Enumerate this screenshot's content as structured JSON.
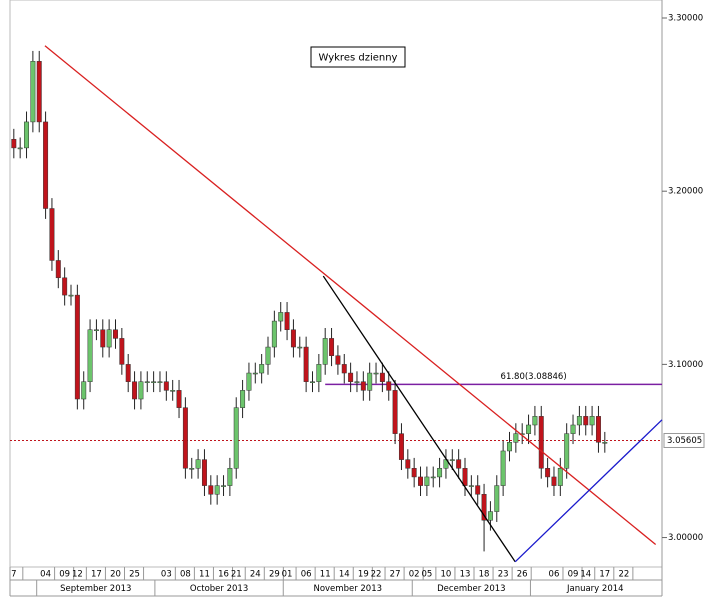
{
  "chart_data": {
    "type": "candlestick",
    "title": "Wykres dzienny",
    "up_color": "#6cc46c",
    "down_color": "#c0141c",
    "ylim": [
      2.983,
      3.3104
    ],
    "yticks": [
      {
        "value": 3.3,
        "label": "3.30000"
      },
      {
        "value": 3.2,
        "label": "3.20000"
      },
      {
        "value": 3.1,
        "label": "3.10000"
      },
      {
        "value": 3.0,
        "label": "3.00000"
      }
    ],
    "xlim": [
      -0.6,
      102
    ],
    "xticks": [
      {
        "value": 0,
        "label": "7"
      },
      {
        "value": 5,
        "label": "04"
      },
      {
        "value": 8,
        "label": "09"
      },
      {
        "value": 10,
        "label": "12"
      },
      {
        "value": 13,
        "label": "17"
      },
      {
        "value": 16,
        "label": "20"
      },
      {
        "value": 19,
        "label": "25"
      },
      {
        "value": 24,
        "label": "03"
      },
      {
        "value": 27,
        "label": "08"
      },
      {
        "value": 30,
        "label": "11"
      },
      {
        "value": 33,
        "label": "16"
      },
      {
        "value": 35,
        "label": "21"
      },
      {
        "value": 38,
        "label": "24"
      },
      {
        "value": 41,
        "label": "29"
      },
      {
        "value": 43,
        "label": "01"
      },
      {
        "value": 46,
        "label": "06"
      },
      {
        "value": 49,
        "label": "11"
      },
      {
        "value": 52,
        "label": "14"
      },
      {
        "value": 55,
        "label": "19"
      },
      {
        "value": 57,
        "label": "22"
      },
      {
        "value": 60,
        "label": "27"
      },
      {
        "value": 63,
        "label": "02"
      },
      {
        "value": 65,
        "label": "05"
      },
      {
        "value": 68,
        "label": "10"
      },
      {
        "value": 71,
        "label": "13"
      },
      {
        "value": 74,
        "label": "18"
      },
      {
        "value": 77,
        "label": "23"
      },
      {
        "value": 80,
        "label": "26"
      },
      {
        "value": 85,
        "label": "06"
      },
      {
        "value": 88,
        "label": "09"
      },
      {
        "value": 90,
        "label": "14"
      },
      {
        "value": 93,
        "label": "17"
      },
      {
        "value": 96,
        "label": "22"
      }
    ],
    "months": [
      {
        "label": "September 2013",
        "from": 3.6,
        "to": 22.2
      },
      {
        "label": "October 2013",
        "from": 22.2,
        "to": 42.4
      },
      {
        "label": "November 2013",
        "from": 42.4,
        "to": 62.7
      },
      {
        "label": "December 2013",
        "from": 62.7,
        "to": 81.3
      },
      {
        "label": "January 2014",
        "from": 81.3,
        "to": 101.7
      }
    ],
    "open": [
      3.23,
      3.225,
      3.225,
      3.24,
      3.275,
      3.24,
      3.19,
      3.16,
      3.15,
      3.14,
      3.14,
      3.08,
      3.09,
      3.12,
      3.12,
      3.11,
      3.12,
      3.115,
      3.1,
      3.09,
      3.08,
      3.09,
      3.09,
      3.09,
      3.09,
      3.085,
      3.085,
      3.075,
      3.04,
      3.04,
      3.045,
      3.03,
      3.025,
      3.03,
      3.03,
      3.04,
      3.075,
      3.085,
      3.095,
      3.095,
      3.1,
      3.11,
      3.125,
      3.13,
      3.12,
      3.11,
      3.11,
      3.09,
      3.09,
      3.1,
      3.115,
      3.105,
      3.1,
      3.095,
      3.09,
      3.09,
      3.085,
      3.095,
      3.095,
      3.09,
      3.085,
      3.06,
      3.045,
      3.04,
      3.035,
      3.03,
      3.035,
      3.035,
      3.04,
      3.045,
      3.045,
      3.04,
      3.03,
      3.03,
      3.025,
      3.01,
      3.015,
      3.03,
      3.05,
      3.055,
      3.06,
      3.06,
      3.065,
      3.07,
      3.04,
      3.035,
      3.03,
      3.04,
      3.06,
      3.065,
      3.07,
      3.065,
      3.07,
      3.055
    ],
    "high": [
      3.236,
      3.231,
      3.246,
      3.281,
      3.281,
      3.246,
      3.196,
      3.166,
      3.156,
      3.146,
      3.146,
      3.096,
      3.126,
      3.126,
      3.126,
      3.126,
      3.126,
      3.121,
      3.106,
      3.096,
      3.096,
      3.096,
      3.096,
      3.096,
      3.096,
      3.091,
      3.091,
      3.081,
      3.046,
      3.051,
      3.051,
      3.036,
      3.036,
      3.036,
      3.046,
      3.081,
      3.091,
      3.101,
      3.101,
      3.106,
      3.116,
      3.131,
      3.136,
      3.136,
      3.126,
      3.116,
      3.116,
      3.096,
      3.106,
      3.121,
      3.121,
      3.111,
      3.106,
      3.101,
      3.096,
      3.096,
      3.101,
      3.101,
      3.101,
      3.096,
      3.091,
      3.066,
      3.051,
      3.046,
      3.041,
      3.041,
      3.041,
      3.046,
      3.051,
      3.051,
      3.051,
      3.046,
      3.036,
      3.036,
      3.031,
      3.021,
      3.036,
      3.056,
      3.061,
      3.066,
      3.066,
      3.071,
      3.076,
      3.076,
      3.046,
      3.041,
      3.046,
      3.066,
      3.071,
      3.076,
      3.076,
      3.076,
      3.076,
      3.061
    ],
    "low": [
      3.219,
      3.219,
      3.219,
      3.234,
      3.234,
      3.184,
      3.154,
      3.144,
      3.134,
      3.134,
      3.074,
      3.074,
      3.084,
      3.114,
      3.104,
      3.104,
      3.109,
      3.094,
      3.084,
      3.074,
      3.074,
      3.084,
      3.084,
      3.084,
      3.079,
      3.079,
      3.069,
      3.034,
      3.034,
      3.034,
      3.024,
      3.019,
      3.019,
      3.024,
      3.024,
      3.034,
      3.069,
      3.079,
      3.089,
      3.089,
      3.094,
      3.104,
      3.119,
      3.114,
      3.104,
      3.104,
      3.084,
      3.084,
      3.084,
      3.094,
      3.099,
      3.094,
      3.089,
      3.084,
      3.084,
      3.079,
      3.079,
      3.089,
      3.084,
      3.079,
      3.054,
      3.039,
      3.034,
      3.029,
      3.024,
      3.024,
      3.029,
      3.029,
      3.034,
      3.039,
      3.034,
      3.024,
      3.024,
      3.019,
      2.992,
      3.004,
      3.009,
      3.024,
      3.044,
      3.049,
      3.054,
      3.054,
      3.059,
      3.034,
      3.029,
      3.024,
      3.024,
      3.034,
      3.054,
      3.059,
      3.059,
      3.059,
      3.049,
      3.049
    ],
    "close": [
      3.225,
      3.225,
      3.24,
      3.275,
      3.24,
      3.19,
      3.16,
      3.15,
      3.14,
      3.14,
      3.08,
      3.09,
      3.12,
      3.12,
      3.11,
      3.12,
      3.115,
      3.1,
      3.09,
      3.08,
      3.09,
      3.09,
      3.09,
      3.09,
      3.085,
      3.085,
      3.075,
      3.04,
      3.04,
      3.045,
      3.03,
      3.025,
      3.03,
      3.03,
      3.04,
      3.075,
      3.085,
      3.095,
      3.095,
      3.1,
      3.11,
      3.125,
      3.13,
      3.12,
      3.11,
      3.11,
      3.09,
      3.09,
      3.1,
      3.115,
      3.105,
      3.1,
      3.095,
      3.09,
      3.09,
      3.085,
      3.095,
      3.095,
      3.09,
      3.085,
      3.06,
      3.045,
      3.04,
      3.035,
      3.03,
      3.035,
      3.035,
      3.04,
      3.045,
      3.045,
      3.04,
      3.03,
      3.03,
      3.025,
      3.01,
      3.015,
      3.03,
      3.05,
      3.055,
      3.06,
      3.06,
      3.065,
      3.07,
      3.04,
      3.035,
      3.03,
      3.04,
      3.06,
      3.065,
      3.07,
      3.065,
      3.07,
      3.055,
      3.055
    ],
    "trendlines": [
      {
        "color": "#d92020",
        "points": [
          [
            4.9,
            3.284
          ],
          [
            101,
            2.996
          ]
        ]
      },
      {
        "color": "#000000",
        "points": [
          [
            48.7,
            3.151
          ],
          [
            78.9,
            2.986
          ]
        ]
      },
      {
        "color": "#1a1acc",
        "points": [
          [
            78.9,
            2.986
          ],
          [
            102,
            3.068
          ]
        ]
      }
    ],
    "fib_level": {
      "label": "61.80(3.08846)",
      "value": 3.08846,
      "from": 49,
      "to": 102,
      "color": "#7b1fa2"
    },
    "last_price": {
      "value": 3.05605,
      "label": "3.05605",
      "color": "#c0141c",
      "text_color": "#2e8b2e"
    }
  }
}
